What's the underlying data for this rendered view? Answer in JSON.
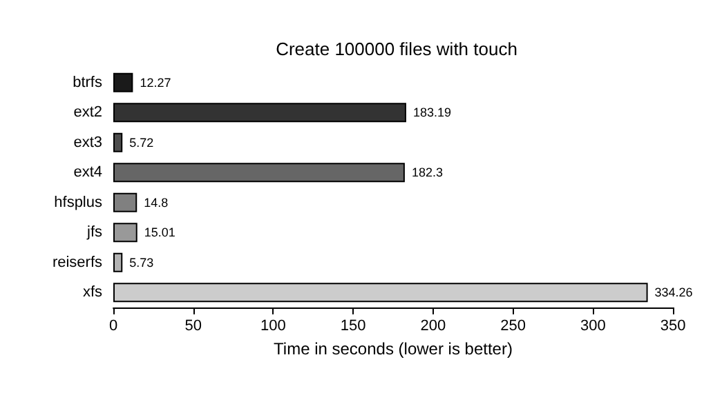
{
  "chart_data": {
    "type": "bar",
    "orientation": "horizontal",
    "title": "Create 100000 files with touch",
    "xlabel": "Time in seconds (lower is better)",
    "categories": [
      "btrfs",
      "ext2",
      "ext3",
      "ext4",
      "hfsplus",
      "jfs",
      "reiserfs",
      "xfs"
    ],
    "values": [
      12.27,
      183.19,
      5.72,
      182.3,
      14.8,
      15.01,
      5.73,
      334.26
    ],
    "colors": [
      "#1a1a1a",
      "#333333",
      "#4d4d4d",
      "#666666",
      "#808080",
      "#999999",
      "#b3b3b3",
      "#cccccc"
    ],
    "xlim": [
      0,
      350
    ],
    "xticks": [
      0,
      50,
      100,
      150,
      200,
      250,
      300,
      350
    ],
    "data_labels": true
  }
}
